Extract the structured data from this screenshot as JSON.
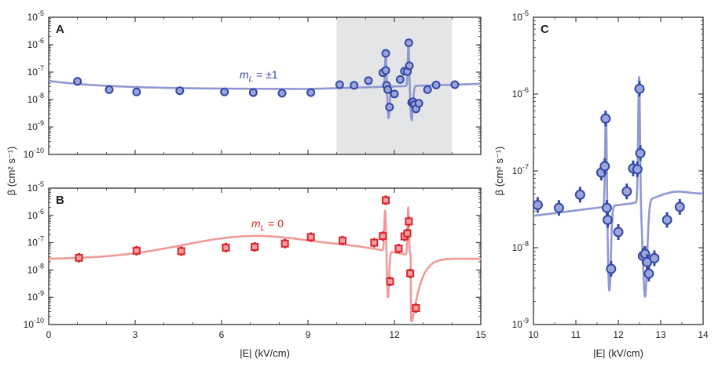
{
  "chart_data": [
    {
      "panel": "A",
      "type": "scatter",
      "series_name": "m_L = ±1",
      "annotation": {
        "base": "m",
        "sub": "L",
        "rest": " = ±1"
      },
      "xlim": [
        0,
        15
      ],
      "ylim": [
        1e-10,
        1e-05
      ],
      "yscale": "log",
      "shaded_region": [
        10,
        14
      ],
      "color": "#3447a8",
      "fill": "#9aa6d8",
      "line_color": "#8f98d2",
      "points": [
        {
          "x": 1.0,
          "y": 4.6e-08
        },
        {
          "x": 2.1,
          "y": 2.3e-08
        },
        {
          "x": 3.05,
          "y": 1.9e-08
        },
        {
          "x": 4.55,
          "y": 2.1e-08
        },
        {
          "x": 6.1,
          "y": 1.9e-08
        },
        {
          "x": 7.1,
          "y": 1.8e-08
        },
        {
          "x": 8.1,
          "y": 1.7e-08
        },
        {
          "x": 9.1,
          "y": 1.8e-08
        },
        {
          "x": 10.1,
          "y": 3.5e-08
        },
        {
          "x": 10.6,
          "y": 3.3e-08
        },
        {
          "x": 11.1,
          "y": 4.9e-08
        },
        {
          "x": 11.6,
          "y": 9.5e-08
        },
        {
          "x": 11.7,
          "y": 1.15e-07
        },
        {
          "x": 11.7,
          "y": 4.8e-07
        },
        {
          "x": 11.73,
          "y": 3.3e-08
        },
        {
          "x": 11.77,
          "y": 2.3e-08
        },
        {
          "x": 11.83,
          "y": 5.3e-09
        },
        {
          "x": 12.0,
          "y": 1.6e-08
        },
        {
          "x": 12.2,
          "y": 5.4e-08
        },
        {
          "x": 12.35,
          "y": 1.08e-07
        },
        {
          "x": 12.45,
          "y": 1.05e-07
        },
        {
          "x": 12.5,
          "y": 1.17e-06
        },
        {
          "x": 12.52,
          "y": 1.7e-07
        },
        {
          "x": 12.6,
          "y": 7.8e-09
        },
        {
          "x": 12.65,
          "y": 8.3e-09
        },
        {
          "x": 12.7,
          "y": 6.5e-09
        },
        {
          "x": 12.75,
          "y": 4.6e-09
        },
        {
          "x": 12.85,
          "y": 7.3e-09
        },
        {
          "x": 13.15,
          "y": 2.3e-08
        },
        {
          "x": 13.45,
          "y": 3.4e-08
        },
        {
          "x": 14.1,
          "y": 3.5e-08
        }
      ]
    },
    {
      "panel": "B",
      "type": "scatter",
      "series_name": "m_L = 0",
      "annotation": {
        "base": "m",
        "sub": "L",
        "rest": " = 0"
      },
      "xlim": [
        0,
        15
      ],
      "ylim": [
        1e-10,
        1e-05
      ],
      "yscale": "log",
      "color": "#d8232a",
      "fill": "#f5a0a0",
      "line_color": "#f09a9a",
      "points": [
        {
          "x": 1.05,
          "y": 2.8e-08
        },
        {
          "x": 3.05,
          "y": 5.1e-08
        },
        {
          "x": 4.6,
          "y": 4.9e-08
        },
        {
          "x": 6.15,
          "y": 6.6e-08
        },
        {
          "x": 7.15,
          "y": 7e-08
        },
        {
          "x": 8.2,
          "y": 9.3e-08
        },
        {
          "x": 9.1,
          "y": 1.6e-07
        },
        {
          "x": 10.2,
          "y": 1.2e-07
        },
        {
          "x": 11.3,
          "y": 1e-07
        },
        {
          "x": 11.6,
          "y": 1.75e-07
        },
        {
          "x": 11.7,
          "y": 3.6e-06
        },
        {
          "x": 11.85,
          "y": 3.8e-09
        },
        {
          "x": 12.15,
          "y": 6.1e-08
        },
        {
          "x": 12.35,
          "y": 1.7e-07
        },
        {
          "x": 12.45,
          "y": 2.2e-07
        },
        {
          "x": 12.5,
          "y": 6e-07
        },
        {
          "x": 12.55,
          "y": 7.5e-09
        },
        {
          "x": 12.75,
          "y": 4e-10
        }
      ]
    },
    {
      "panel": "C",
      "type": "scatter",
      "series_name": "m_L = ±1",
      "xlim": [
        10,
        14
      ],
      "ylim": [
        1e-09,
        1e-05
      ],
      "yscale": "log",
      "color": "#3447a8",
      "fill": "#9aa6d8",
      "line_color": "#8f98d2",
      "points": [
        {
          "x": 10.1,
          "y": 3.6e-08
        },
        {
          "x": 10.6,
          "y": 3.3e-08
        },
        {
          "x": 11.1,
          "y": 4.9e-08
        },
        {
          "x": 11.6,
          "y": 9.5e-08
        },
        {
          "x": 11.68,
          "y": 1.15e-07
        },
        {
          "x": 11.7,
          "y": 4.8e-07
        },
        {
          "x": 11.73,
          "y": 3.3e-08
        },
        {
          "x": 11.75,
          "y": 2.3e-08
        },
        {
          "x": 11.83,
          "y": 5.3e-09
        },
        {
          "x": 12.0,
          "y": 1.6e-08
        },
        {
          "x": 12.2,
          "y": 5.4e-08
        },
        {
          "x": 12.35,
          "y": 1.08e-07
        },
        {
          "x": 12.45,
          "y": 1.05e-07
        },
        {
          "x": 12.5,
          "y": 1.17e-06
        },
        {
          "x": 12.52,
          "y": 1.7e-07
        },
        {
          "x": 12.58,
          "y": 7.8e-09
        },
        {
          "x": 12.63,
          "y": 8.3e-09
        },
        {
          "x": 12.68,
          "y": 6.5e-09
        },
        {
          "x": 12.72,
          "y": 4.6e-09
        },
        {
          "x": 12.85,
          "y": 7.3e-09
        },
        {
          "x": 13.15,
          "y": 2.3e-08
        },
        {
          "x": 13.45,
          "y": 3.4e-08
        }
      ]
    }
  ],
  "ylabel": "β (cm² s⁻¹)",
  "xlabel": "|E| (kV/cm)",
  "x_ticks_AB": [
    "0",
    "3",
    "6",
    "9",
    "12",
    "15"
  ],
  "x_ticks_C": [
    "10",
    "11",
    "12",
    "13",
    "14"
  ]
}
